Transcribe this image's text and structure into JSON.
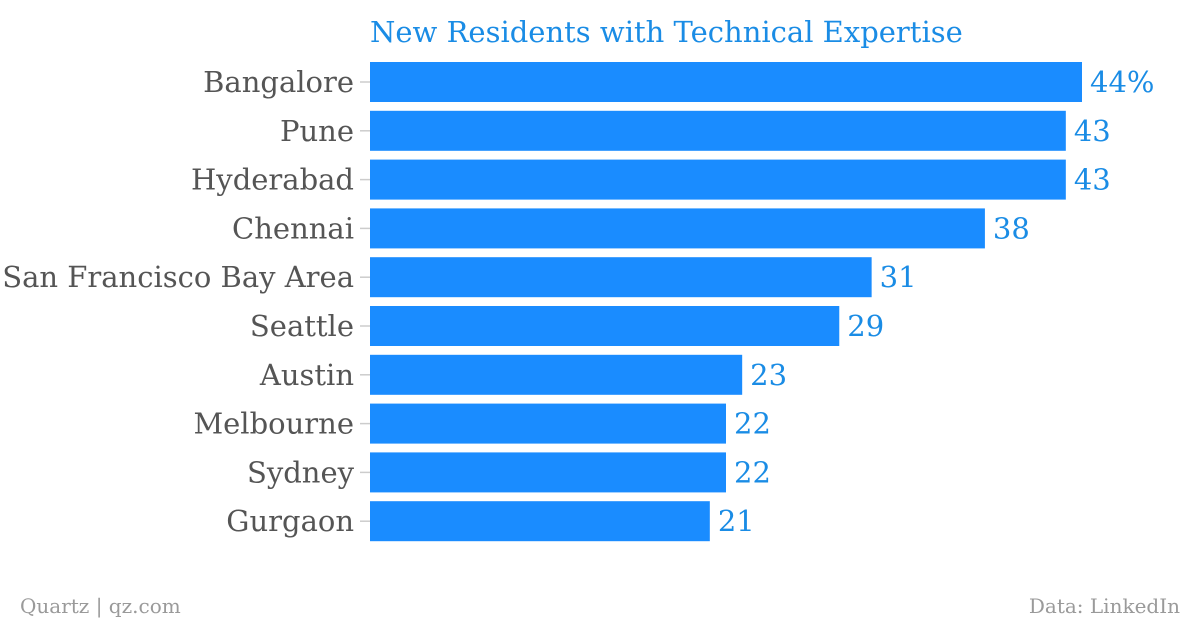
{
  "chart_data": {
    "type": "bar",
    "orientation": "horizontal",
    "title": "New Residents with Technical Expertise",
    "categories": [
      "Bangalore",
      "Pune",
      "Hyderabad",
      "Chennai",
      "San Francisco Bay Area",
      "Seattle",
      "Austin",
      "Melbourne",
      "Sydney",
      "Gurgaon"
    ],
    "values": [
      44,
      43,
      43,
      38,
      31,
      29,
      23,
      22,
      22,
      21
    ],
    "value_labels": [
      "44%",
      "43",
      "43",
      "38",
      "31",
      "29",
      "23",
      "22",
      "22",
      "21"
    ],
    "xlim": [
      0,
      44
    ],
    "grid": false,
    "legend": "none",
    "bar_color": "#1a8cff",
    "label_color": "#1a8ce5"
  },
  "footer": {
    "credit": "Quartz | qz.com",
    "source": "Data: LinkedIn"
  }
}
